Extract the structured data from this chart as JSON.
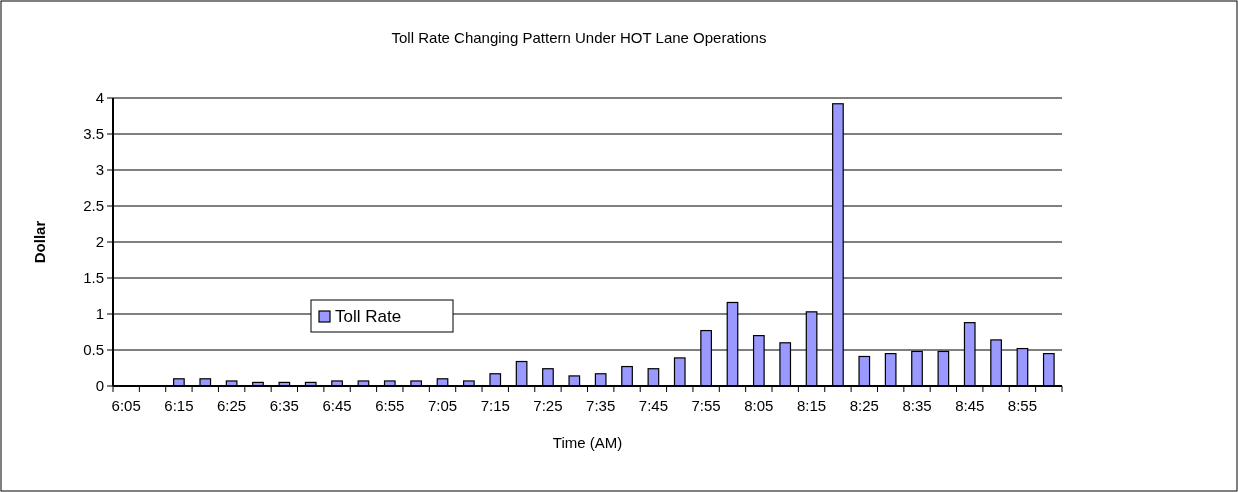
{
  "chart_data": {
    "type": "bar",
    "title": "Toll Rate Changing Pattern Under HOT Lane Operations",
    "xlabel": "Time (AM)",
    "ylabel": "Dollar",
    "categories": [
      "6:05",
      null,
      "6:15",
      null,
      "6:25",
      null,
      "6:35",
      null,
      "6:45",
      null,
      "6:55",
      null,
      "7:05",
      null,
      "7:15",
      null,
      "7:25",
      null,
      "7:35",
      null,
      "7:45",
      null,
      "7:55",
      null,
      "8:05",
      null,
      "8:15",
      null,
      "8:25",
      null,
      "8:35",
      null,
      "8:45",
      null,
      "8:55",
      null
    ],
    "series": [
      {
        "name": "Toll Rate",
        "color": "#9999ff",
        "values": [
          null,
          null,
          0.1,
          0.1,
          0.07,
          0.05,
          0.05,
          0.05,
          0.07,
          0.07,
          0.07,
          0.07,
          0.1,
          0.07,
          0.17,
          0.34,
          0.24,
          0.14,
          0.17,
          0.27,
          0.24,
          0.39,
          0.77,
          1.16,
          0.7,
          0.6,
          1.03,
          3.92,
          0.41,
          0.45,
          0.48,
          0.48,
          0.88,
          0.64,
          0.52,
          0.45
        ]
      }
    ],
    "ylim": [
      0,
      4
    ],
    "yticks": [
      0,
      0.5,
      1,
      1.5,
      2,
      2.5,
      3,
      3.5,
      4
    ],
    "grid": "y",
    "legend": "left"
  }
}
